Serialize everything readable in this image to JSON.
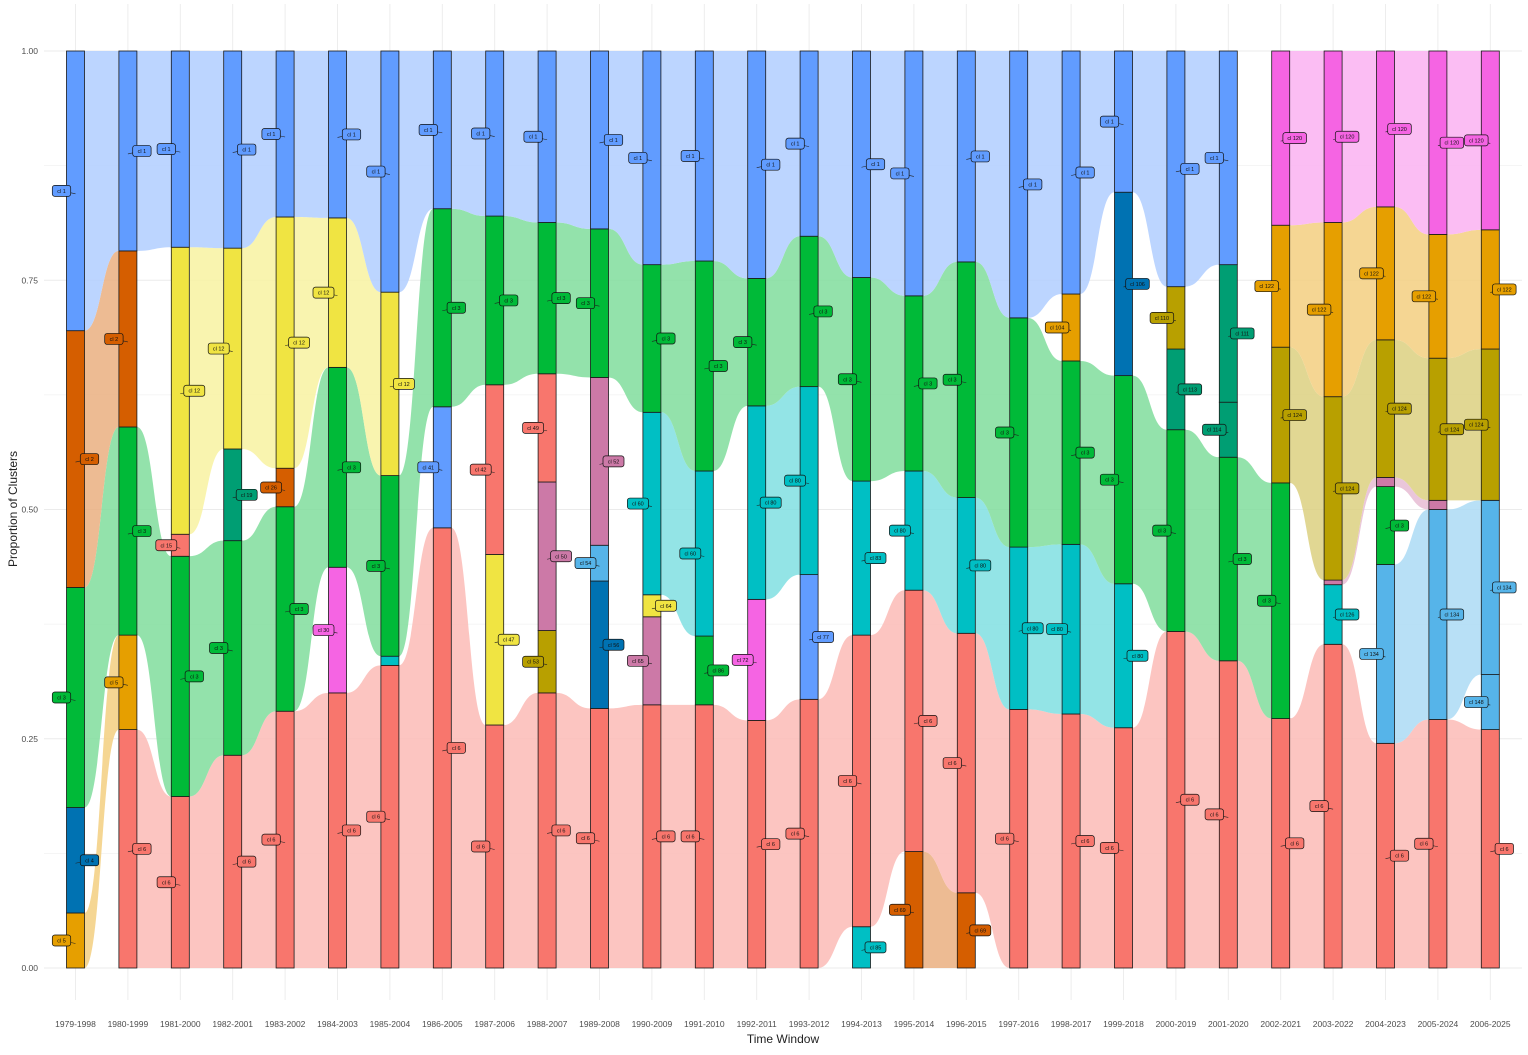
{
  "chart_data": {
    "type": "alluvial",
    "xlabel": "Time Window",
    "ylabel": "Proportion of Clusters",
    "ylim": [
      0,
      1
    ],
    "yticks": [
      "0.00",
      "0.25",
      "0.50",
      "0.75",
      "1.00"
    ],
    "ytick_values": [
      0,
      0.25,
      0.5,
      0.75,
      1.0
    ],
    "grid": true,
    "categories": [
      "1979-1998",
      "1980-1999",
      "1981-2000",
      "1982-2001",
      "1983-2002",
      "1984-2003",
      "1985-2004",
      "1986-2005",
      "1987-2006",
      "1988-2007",
      "1989-2008",
      "1990-2009",
      "1991-2010",
      "1992-2011",
      "1993-2012",
      "1994-2013",
      "1995-2014",
      "1996-2015",
      "1997-2016",
      "1998-2017",
      "1999-2018",
      "2000-2019",
      "2001-2020",
      "2002-2021",
      "2003-2022",
      "2004-2023",
      "2005-2024",
      "2006-2025"
    ],
    "colors": {
      "cl_1": "#619CFF",
      "cl_2": "#D55E00",
      "cl_3": "#00BA38",
      "cl_4": "#0072B2",
      "cl_5": "#E69F00",
      "cl_6": "#F8766D",
      "cl_12": "#F0E442",
      "cl_15": "#F8766D",
      "cl_16": "#00BA38",
      "cl_19": "#009E73",
      "cl_26": "#D55E00",
      "cl_30": "#F564E3",
      "cl_37": "#619CFF",
      "cl_38": "#00BFC4",
      "cl_41": "#619CFF",
      "cl_42": "#F8766D",
      "cl_47": "#F0E442",
      "cl_49": "#F8766D",
      "cl_50": "#CC79A7",
      "cl_52": "#CC79A7",
      "cl_53": "#B8A000",
      "cl_54": "#56B4E9",
      "cl_56": "#0072B2",
      "cl_60": "#00BFC4",
      "cl_64": "#F0E442",
      "cl_65": "#CC79A7",
      "cl_69": "#D55E00",
      "cl_72": "#F564E3",
      "cl_77": "#619CFF",
      "cl_80": "#00BFC4",
      "cl_83": "#00BFC4",
      "cl_85": "#00BFC4",
      "cl_86": "#00BA38",
      "cl_88": "#00BFC4",
      "cl_104": "#E69F00",
      "cl_106": "#0072B2",
      "cl_110": "#B8A000",
      "cl_111": "#009E73",
      "cl_113": "#009E73",
      "cl_114": "#009E73",
      "cl_120": "#F564E3",
      "cl_122": "#E69F00",
      "cl_124": "#B8A000",
      "cl_125": "#CC79A7",
      "cl_126": "#00BFC4",
      "cl_134": "#56B4E9",
      "cl_148": "#56B4E9"
    },
    "strata": [
      [
        [
          "cl_5",
          0.06
        ],
        [
          "cl_4",
          0.115
        ],
        [
          "cl_3",
          0.24
        ],
        [
          "cl_2",
          0.28
        ],
        [
          "cl_1",
          0.305
        ]
      ],
      [
        [
          "cl_6",
          0.26
        ],
        [
          "cl_5",
          0.103
        ],
        [
          "cl_3",
          0.227
        ],
        [
          "cl_2",
          0.192
        ],
        [
          "cl_1",
          0.218
        ]
      ],
      [
        [
          "cl_6",
          0.187
        ],
        [
          "cl_3",
          0.262
        ],
        [
          "cl_15",
          0.024
        ],
        [
          "cl_12",
          0.313
        ],
        [
          "cl_1",
          0.214
        ]
      ],
      [
        [
          "cl_6",
          0.232
        ],
        [
          "cl_3",
          0.234
        ],
        [
          "cl_19",
          0.1
        ],
        [
          "cl_12",
          0.219
        ],
        [
          "cl_1",
          0.215
        ]
      ],
      [
        [
          "cl_6",
          0.28
        ],
        [
          "cl_3",
          0.223
        ],
        [
          "cl_26",
          0.042
        ],
        [
          "cl_12",
          0.274
        ],
        [
          "cl_1",
          0.181
        ]
      ],
      [
        [
          "cl_6",
          0.3
        ],
        [
          "cl_30",
          0.137
        ],
        [
          "cl_3",
          0.218
        ],
        [
          "cl_12",
          0.163
        ],
        [
          "cl_1",
          0.182
        ]
      ],
      [
        [
          "cl_6",
          0.33
        ],
        [
          "cl_38",
          0.01
        ],
        [
          "cl_3",
          0.197
        ],
        [
          "cl_12",
          0.2
        ],
        [
          "cl_1",
          0.263
        ]
      ],
      [
        [
          "cl_6",
          0.48
        ],
        [
          "cl_41",
          0.132
        ],
        [
          "cl_3",
          0.216
        ],
        [
          "cl_1",
          0.172
        ]
      ],
      [
        [
          "cl_6",
          0.265
        ],
        [
          "cl_47",
          0.186
        ],
        [
          "cl_42",
          0.185
        ],
        [
          "cl_3",
          0.184
        ],
        [
          "cl_1",
          0.18
        ]
      ],
      [
        [
          "cl_6",
          0.3
        ],
        [
          "cl_53",
          0.068
        ],
        [
          "cl_50",
          0.162
        ],
        [
          "cl_49",
          0.118
        ],
        [
          "cl_3",
          0.165
        ],
        [
          "cl_1",
          0.187
        ]
      ],
      [
        [
          "cl_6",
          0.283
        ],
        [
          "cl_56",
          0.139
        ],
        [
          "cl_54",
          0.039
        ],
        [
          "cl_52",
          0.183
        ],
        [
          "cl_3",
          0.162
        ],
        [
          "cl_1",
          0.194
        ]
      ],
      [
        [
          "cl_6",
          0.287
        ],
        [
          "cl_65",
          0.096
        ],
        [
          "cl_64",
          0.024
        ],
        [
          "cl_60",
          0.199
        ],
        [
          "cl_3",
          0.161
        ],
        [
          "cl_1",
          0.233
        ]
      ],
      [
        [
          "cl_6",
          0.287
        ],
        [
          "cl_86",
          0.075
        ],
        [
          "cl_60",
          0.18
        ],
        [
          "cl_3",
          0.229
        ],
        [
          "cl_1",
          0.229
        ]
      ],
      [
        [
          "cl_6",
          0.27
        ],
        [
          "cl_72",
          0.132
        ],
        [
          "cl_80",
          0.211
        ],
        [
          "cl_3",
          0.139
        ],
        [
          "cl_1",
          0.248
        ]
      ],
      [
        [
          "cl_6",
          0.293
        ],
        [
          "cl_77",
          0.136
        ],
        [
          "cl_80",
          0.205
        ],
        [
          "cl_3",
          0.164
        ],
        [
          "cl_1",
          0.202
        ]
      ],
      [
        [
          "cl_85",
          0.045
        ],
        [
          "cl_6",
          0.318
        ],
        [
          "cl_83",
          0.168
        ],
        [
          "cl_3",
          0.222
        ],
        [
          "cl_1",
          0.247
        ]
      ],
      [
        [
          "cl_69",
          0.127
        ],
        [
          "cl_6",
          0.285
        ],
        [
          "cl_80",
          0.13
        ],
        [
          "cl_3",
          0.191
        ],
        [
          "cl_1",
          0.267
        ]
      ],
      [
        [
          "cl_69",
          0.082
        ],
        [
          "cl_6",
          0.283
        ],
        [
          "cl_80",
          0.148
        ],
        [
          "cl_3",
          0.257
        ],
        [
          "cl_1",
          0.23
        ]
      ],
      [
        [
          "cl_6",
          0.282
        ],
        [
          "cl_80",
          0.177
        ],
        [
          "cl_3",
          0.25
        ],
        [
          "cl_1",
          0.291
        ]
      ],
      [
        [
          "cl_6",
          0.277
        ],
        [
          "cl_80",
          0.185
        ],
        [
          "cl_3",
          0.2
        ],
        [
          "cl_104",
          0.073
        ],
        [
          "cl_1",
          0.265
        ]
      ],
      [
        [
          "cl_6",
          0.262
        ],
        [
          "cl_80",
          0.157
        ],
        [
          "cl_3",
          0.227
        ],
        [
          "cl_106",
          0.2
        ],
        [
          "cl_1",
          0.154
        ]
      ],
      [
        [
          "cl_6",
          0.367
        ],
        [
          "cl_3",
          0.22
        ],
        [
          "cl_113",
          0.088
        ],
        [
          "cl_110",
          0.068
        ],
        [
          "cl_1",
          0.257
        ]
      ],
      [
        [
          "cl_6",
          0.335
        ],
        [
          "cl_3",
          0.222
        ],
        [
          "cl_114",
          0.06
        ],
        [
          "cl_111",
          0.15
        ],
        [
          "cl_1",
          0.233
        ]
      ],
      [
        [
          "cl_6",
          0.272
        ],
        [
          "cl_3",
          0.257
        ],
        [
          "cl_124",
          0.148
        ],
        [
          "cl_122",
          0.133
        ],
        [
          "cl_120",
          0.19
        ]
      ],
      [
        [
          "cl_6",
          0.353
        ],
        [
          "cl_126",
          0.065
        ],
        [
          "cl_125",
          0.005
        ],
        [
          "cl_124",
          0.2
        ],
        [
          "cl_122",
          0.19
        ],
        [
          "cl_120",
          0.187
        ]
      ],
      [
        [
          "cl_6",
          0.245
        ],
        [
          "cl_134",
          0.195
        ],
        [
          "cl_3",
          0.085
        ],
        [
          "cl_125",
          0.01
        ],
        [
          "cl_124",
          0.15
        ],
        [
          "cl_122",
          0.145
        ],
        [
          "cl_120",
          0.17
        ]
      ],
      [
        [
          "cl_6",
          0.271
        ],
        [
          "cl_134",
          0.229
        ],
        [
          "cl_125",
          0.01
        ],
        [
          "cl_124",
          0.155
        ],
        [
          "cl_122",
          0.135
        ],
        [
          "cl_120",
          0.2
        ]
      ],
      [
        [
          "cl_6",
          0.26
        ],
        [
          "cl_148",
          0.06
        ],
        [
          "cl_134",
          0.19
        ],
        [
          "cl_124",
          0.165
        ],
        [
          "cl_122",
          0.13
        ],
        [
          "cl_120",
          0.195
        ]
      ]
    ]
  }
}
